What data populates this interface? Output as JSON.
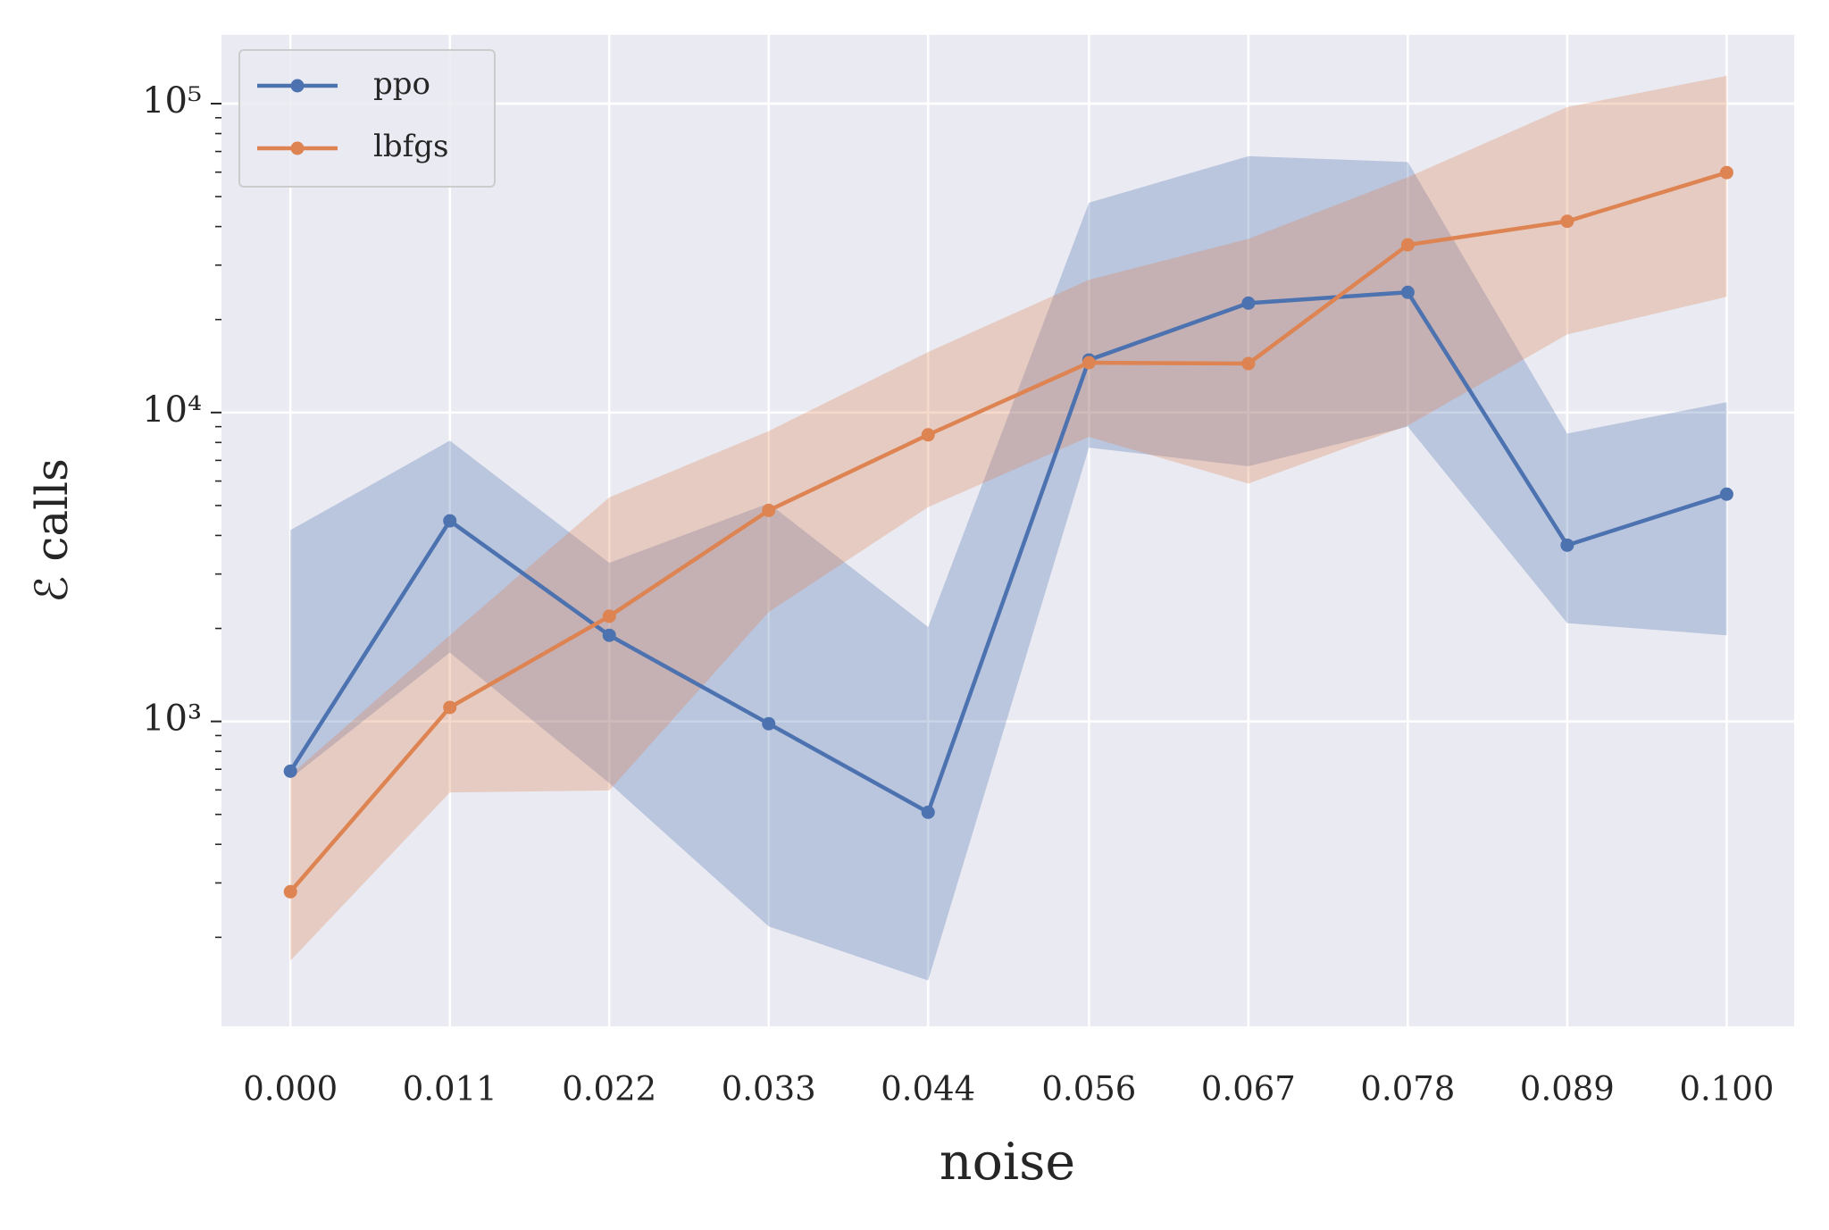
{
  "chart_data": {
    "type": "line",
    "x_label": "noise",
    "y_label": "ℰ calls",
    "x": [
      0,
      0.0111,
      0.0222,
      0.0333,
      0.0444,
      0.0556,
      0.0667,
      0.0778,
      0.0889,
      0.1
    ],
    "series": [
      {
        "name": "ppo",
        "color": "#4c72b0",
        "values": [
          690,
          4460,
          1900,
          983,
          508,
          14800,
          22600,
          24500,
          3720,
          5440
        ],
        "lower": [
          653,
          1670,
          631,
          217,
          145,
          7700,
          6700,
          9000,
          2080,
          1900
        ],
        "upper": [
          4160,
          8110,
          3260,
          5080,
          2020,
          47800,
          67600,
          64700,
          8550,
          10800
        ]
      },
      {
        "name": "lbfgs",
        "color": "#dd8452",
        "values": [
          281,
          1110,
          2190,
          4820,
          8470,
          14500,
          14400,
          34900,
          41600,
          59800
        ],
        "lower": [
          168,
          589,
          598,
          2260,
          4940,
          8340,
          5890,
          9080,
          17900,
          23700
        ],
        "upper": [
          670,
          1900,
          5310,
          8710,
          15700,
          26900,
          36500,
          57800,
          97500,
          123000
        ]
      }
    ],
    "xlim": [
      -0.0048,
      0.1047
    ],
    "xticks": [
      {
        "value": 0,
        "label": "0.000"
      },
      {
        "value": 0.0111,
        "label": "0.011"
      },
      {
        "value": 0.0222,
        "label": "0.022"
      },
      {
        "value": 0.0333,
        "label": "0.033"
      },
      {
        "value": 0.0444,
        "label": "0.044"
      },
      {
        "value": 0.0556,
        "label": "0.056"
      },
      {
        "value": 0.0667,
        "label": "0.067"
      },
      {
        "value": 0.0778,
        "label": "0.078"
      },
      {
        "value": 0.0889,
        "label": "0.089"
      },
      {
        "value": 0.1,
        "label": "0.100"
      }
    ],
    "ylim": [
      103,
      167000
    ],
    "y_scale": "log",
    "yticks": [
      {
        "value": 1000,
        "label": "10³"
      },
      {
        "value": 10000,
        "label": "10⁴"
      },
      {
        "value": 100000,
        "label": "10⁵"
      }
    ],
    "minor_yticks": [
      200,
      300,
      400,
      500,
      600,
      700,
      800,
      900,
      2000,
      3000,
      4000,
      5000,
      6000,
      7000,
      8000,
      9000,
      20000,
      30000,
      40000,
      50000,
      60000,
      70000,
      80000,
      90000
    ],
    "grid": true,
    "legend": "upper left"
  }
}
